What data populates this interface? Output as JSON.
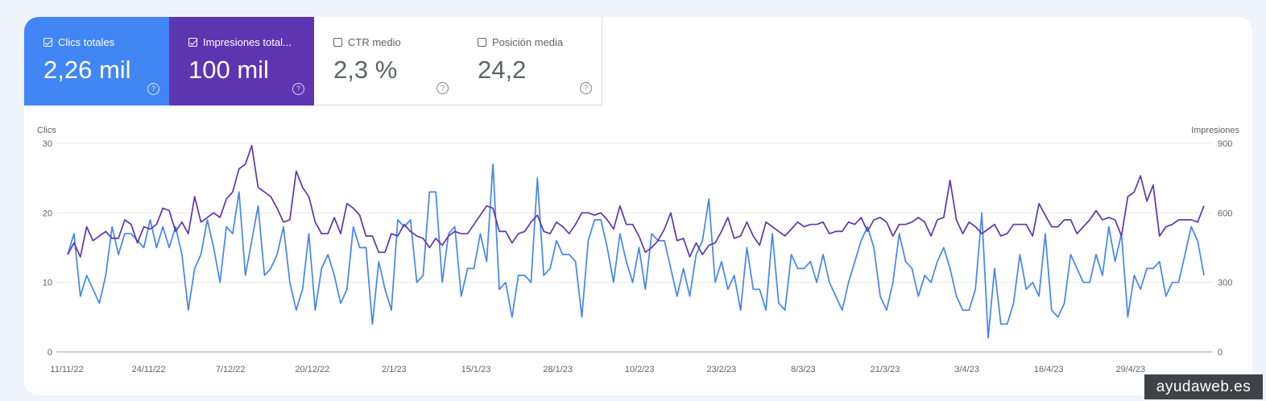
{
  "metrics": {
    "clicks": {
      "label": "Clics totales",
      "value": "2,26 mil",
      "checked": true,
      "color": "#4285f4"
    },
    "impressions": {
      "label": "Impresiones totales",
      "label_visible": "Impresiones total...",
      "value": "100 mil",
      "checked": true,
      "color": "#5e35b1"
    },
    "ctr": {
      "label": "CTR medio",
      "value": "2,3 %",
      "checked": false
    },
    "position": {
      "label": "Posición media",
      "value": "24,2",
      "checked": false
    }
  },
  "watermark": "ayudaweb.es",
  "chart_data": {
    "type": "line",
    "left_axis": {
      "label": "Clics",
      "range": [
        0,
        30
      ],
      "ticks": [
        "0",
        "10",
        "20",
        "30"
      ]
    },
    "right_axis": {
      "label": "Impresiones",
      "range": [
        0,
        900
      ],
      "ticks": [
        "0",
        "300",
        "600",
        "900"
      ]
    },
    "x_ticks": [
      "11/11/22",
      "24/11/22",
      "7/12/22",
      "20/12/22",
      "2/1/23",
      "15/1/23",
      "28/1/23",
      "10/2/23",
      "23/2/23",
      "8/3/23",
      "21/3/23",
      "3/4/23",
      "16/4/23",
      "29/4/23"
    ],
    "grid": true,
    "series": [
      {
        "name": "Clics",
        "axis": "left",
        "color": "#4285f4",
        "values": [
          14,
          17,
          8,
          11,
          9,
          7,
          11,
          18,
          14,
          17,
          17,
          16,
          15,
          19,
          15,
          18,
          15,
          18,
          14,
          6,
          12,
          14,
          19,
          15,
          10,
          18,
          17,
          23,
          11,
          16,
          21,
          11,
          12,
          14,
          18,
          10,
          6,
          9,
          17,
          6,
          12,
          14,
          11,
          7,
          9,
          18,
          15,
          15,
          4,
          13,
          9,
          6,
          19,
          18,
          19,
          10,
          11,
          23,
          23,
          10,
          17,
          18,
          8,
          12,
          12,
          17,
          13,
          27,
          9,
          10,
          5,
          11,
          11,
          10,
          25,
          11,
          12,
          16,
          14,
          14,
          13,
          5,
          16,
          19,
          19,
          15,
          10,
          17,
          13,
          10,
          15,
          9,
          17,
          16,
          16,
          12,
          8,
          12,
          8,
          14,
          16,
          22,
          10,
          13,
          9,
          11,
          6,
          15,
          9,
          9,
          6,
          17,
          7,
          6,
          14,
          12,
          12,
          13,
          10,
          14,
          10,
          8,
          6,
          10,
          13,
          16,
          18,
          15,
          8,
          6,
          10,
          17,
          13,
          12,
          8,
          11,
          10,
          13,
          15,
          12,
          8,
          6,
          6,
          9,
          20,
          2,
          12,
          4,
          4,
          7,
          14,
          9,
          10,
          8,
          17,
          6,
          5,
          7,
          14,
          12,
          10,
          10,
          14,
          11,
          18,
          13,
          17,
          5,
          11,
          9,
          12,
          12,
          13,
          8,
          10,
          10,
          14,
          18,
          16,
          11
        ]
      },
      {
        "name": "Impresiones",
        "axis": "right",
        "color": "#5e35b1",
        "values": [
          420,
          470,
          410,
          540,
          480,
          500,
          520,
          490,
          490,
          570,
          550,
          470,
          540,
          530,
          550,
          620,
          610,
          520,
          560,
          510,
          670,
          560,
          580,
          600,
          580,
          660,
          690,
          790,
          810,
          890,
          710,
          690,
          670,
          620,
          560,
          570,
          780,
          710,
          670,
          560,
          510,
          510,
          580,
          510,
          640,
          620,
          590,
          500,
          500,
          430,
          430,
          510,
          500,
          550,
          520,
          500,
          490,
          450,
          490,
          460,
          500,
          520,
          510,
          510,
          550,
          590,
          630,
          620,
          520,
          520,
          470,
          510,
          520,
          560,
          590,
          520,
          510,
          560,
          540,
          510,
          550,
          600,
          600,
          590,
          600,
          570,
          530,
          630,
          550,
          550,
          500,
          430,
          450,
          480,
          530,
          600,
          480,
          490,
          410,
          470,
          420,
          460,
          470,
          520,
          580,
          490,
          500,
          560,
          500,
          460,
          560,
          540,
          520,
          500,
          530,
          560,
          540,
          550,
          550,
          560,
          510,
          520,
          520,
          560,
          550,
          580,
          520,
          570,
          580,
          560,
          500,
          550,
          550,
          560,
          580,
          560,
          500,
          570,
          580,
          740,
          570,
          510,
          560,
          540,
          510,
          530,
          550,
          500,
          510,
          550,
          550,
          550,
          500,
          640,
          590,
          540,
          540,
          570,
          570,
          510,
          540,
          570,
          610,
          570,
          580,
          570,
          500,
          670,
          690,
          760,
          650,
          720,
          500,
          540,
          550,
          570,
          570,
          570,
          560,
          630
        ]
      }
    ]
  }
}
